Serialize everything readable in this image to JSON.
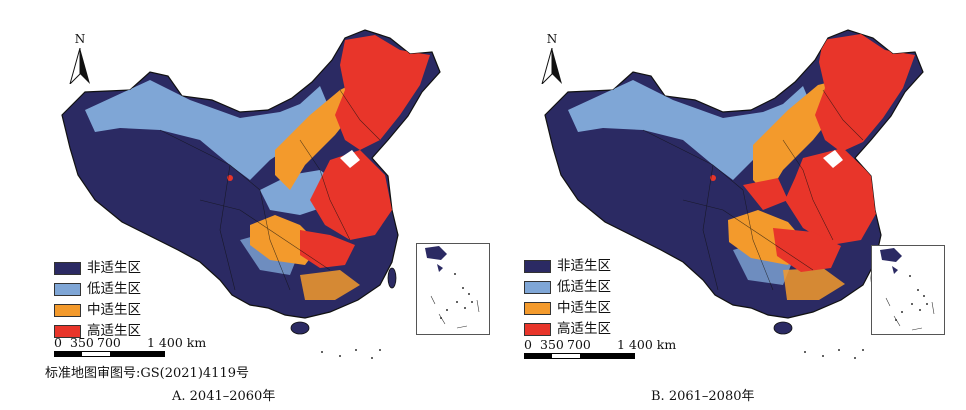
{
  "compass_letter": "N",
  "legend": [
    {
      "label": "非适生区",
      "color": "#2b2a63"
    },
    {
      "label": "低适生区",
      "color": "#7fa6d6"
    },
    {
      "label": "中适生区",
      "color": "#f39a2c"
    },
    {
      "label": "高适生区",
      "color": "#e8352a"
    }
  ],
  "scale": {
    "ticks": [
      "0",
      "350",
      "700",
      "1 400 km"
    ]
  },
  "review_number": "标准地图审图号:GS(2021)4119号",
  "panels": [
    {
      "caption": "A. 2041–2060年"
    },
    {
      "caption": "B. 2061–2080年"
    }
  ],
  "colors": {
    "non": "#2b2a63",
    "low": "#7fa6d6",
    "mid": "#f39a2c",
    "high": "#e8352a",
    "border": "#111111"
  }
}
